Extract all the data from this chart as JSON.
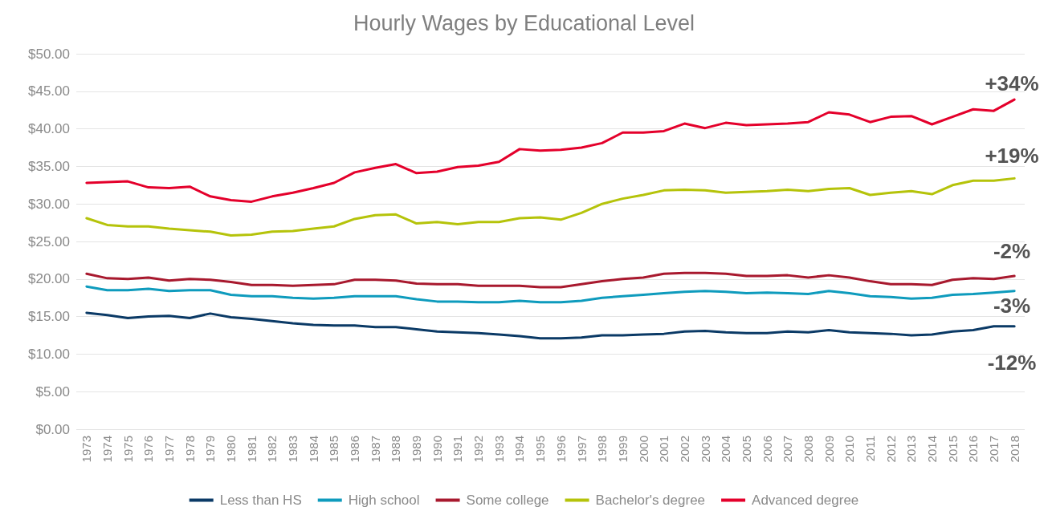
{
  "chart_data": {
    "type": "line",
    "title": "Hourly Wages by Educational Level",
    "categories": [
      "1973",
      "1974",
      "1975",
      "1976",
      "1977",
      "1978",
      "1979",
      "1980",
      "1981",
      "1982",
      "1983",
      "1984",
      "1985",
      "1986",
      "1987",
      "1988",
      "1989",
      "1990",
      "1991",
      "1992",
      "1993",
      "1994",
      "1995",
      "1996",
      "1997",
      "1998",
      "1999",
      "2000",
      "2001",
      "2002",
      "2003",
      "2004",
      "2005",
      "2006",
      "2007",
      "2008",
      "2009",
      "2010",
      "2011",
      "2012",
      "2013",
      "2014",
      "2015",
      "2016",
      "2017",
      "2018"
    ],
    "series": [
      {
        "name": "Less than HS",
        "color": "#0b3a66",
        "values": [
          15.5,
          15.2,
          14.8,
          15.0,
          15.1,
          14.8,
          15.4,
          14.9,
          14.7,
          14.4,
          14.1,
          13.9,
          13.8,
          13.8,
          13.6,
          13.6,
          13.3,
          13.0,
          12.9,
          12.8,
          12.6,
          12.4,
          12.1,
          12.1,
          12.2,
          12.5,
          12.5,
          12.6,
          12.7,
          13.0,
          13.1,
          12.9,
          12.8,
          12.8,
          13.0,
          12.9,
          13.2,
          12.9,
          12.8,
          12.7,
          12.5,
          12.6,
          13.0,
          13.2,
          13.7,
          13.7
        ]
      },
      {
        "name": "High school",
        "color": "#0e9bbd",
        "values": [
          19.0,
          18.5,
          18.5,
          18.7,
          18.4,
          18.5,
          18.5,
          17.9,
          17.7,
          17.7,
          17.5,
          17.4,
          17.5,
          17.7,
          17.7,
          17.7,
          17.3,
          17.0,
          17.0,
          16.9,
          16.9,
          17.1,
          16.9,
          16.9,
          17.1,
          17.5,
          17.7,
          17.9,
          18.1,
          18.3,
          18.4,
          18.3,
          18.1,
          18.2,
          18.1,
          18.0,
          18.4,
          18.1,
          17.7,
          17.6,
          17.4,
          17.5,
          17.9,
          18.0,
          18.2,
          18.4
        ]
      },
      {
        "name": "Some college",
        "color": "#a8192e",
        "values": [
          20.7,
          20.1,
          20.0,
          20.2,
          19.8,
          20.0,
          19.9,
          19.6,
          19.2,
          19.2,
          19.1,
          19.2,
          19.3,
          19.9,
          19.9,
          19.8,
          19.4,
          19.3,
          19.3,
          19.1,
          19.1,
          19.1,
          18.9,
          18.9,
          19.3,
          19.7,
          20.0,
          20.2,
          20.7,
          20.8,
          20.8,
          20.7,
          20.4,
          20.4,
          20.5,
          20.2,
          20.5,
          20.2,
          19.7,
          19.3,
          19.3,
          19.2,
          19.9,
          20.1,
          20.0,
          20.4
        ]
      },
      {
        "name": "Bachelor's degree",
        "color": "#b5c30a",
        "values": [
          28.1,
          27.2,
          27.0,
          27.0,
          26.7,
          26.5,
          26.3,
          25.8,
          25.9,
          26.3,
          26.4,
          26.7,
          27.0,
          28.0,
          28.5,
          28.6,
          27.4,
          27.6,
          27.3,
          27.6,
          27.6,
          28.1,
          28.2,
          27.9,
          28.8,
          30.0,
          30.7,
          31.2,
          31.8,
          31.9,
          31.8,
          31.5,
          31.6,
          31.7,
          31.9,
          31.7,
          32.0,
          32.1,
          31.2,
          31.5,
          31.7,
          31.3,
          32.5,
          33.1,
          33.1,
          33.4
        ]
      },
      {
        "name": "Advanced degree",
        "color": "#e4002b",
        "values": [
          32.8,
          32.9,
          33.0,
          32.2,
          32.1,
          32.3,
          31.0,
          30.5,
          30.3,
          31.0,
          31.5,
          32.1,
          32.8,
          34.2,
          34.8,
          35.3,
          34.1,
          34.3,
          34.9,
          35.1,
          35.6,
          37.3,
          37.1,
          37.2,
          37.5,
          38.1,
          39.5,
          39.5,
          39.7,
          40.7,
          40.1,
          40.8,
          40.5,
          40.6,
          40.7,
          40.9,
          42.2,
          41.9,
          40.9,
          41.6,
          41.7,
          40.6,
          41.6,
          42.6,
          42.4,
          43.9
        ]
      }
    ],
    "ylim": [
      0,
      50
    ],
    "yticks": [
      {
        "value": 0,
        "label": "$0.00"
      },
      {
        "value": 5,
        "label": "$5.00"
      },
      {
        "value": 10,
        "label": "$10.00"
      },
      {
        "value": 15,
        "label": "$15.00"
      },
      {
        "value": 20,
        "label": "$20.00"
      },
      {
        "value": 25,
        "label": "$25.00"
      },
      {
        "value": 30,
        "label": "$30.00"
      },
      {
        "value": 35,
        "label": "$35.00"
      },
      {
        "value": 40,
        "label": "$40.00"
      },
      {
        "value": 45,
        "label": "$45.00"
      },
      {
        "value": 50,
        "label": "$50.00"
      }
    ],
    "annotations": [
      "+34%",
      "+19%",
      "-2%",
      "-3%",
      "-12%"
    ],
    "grid": "y",
    "legend": "bottom",
    "marker": "none",
    "line_style": "solid"
  }
}
